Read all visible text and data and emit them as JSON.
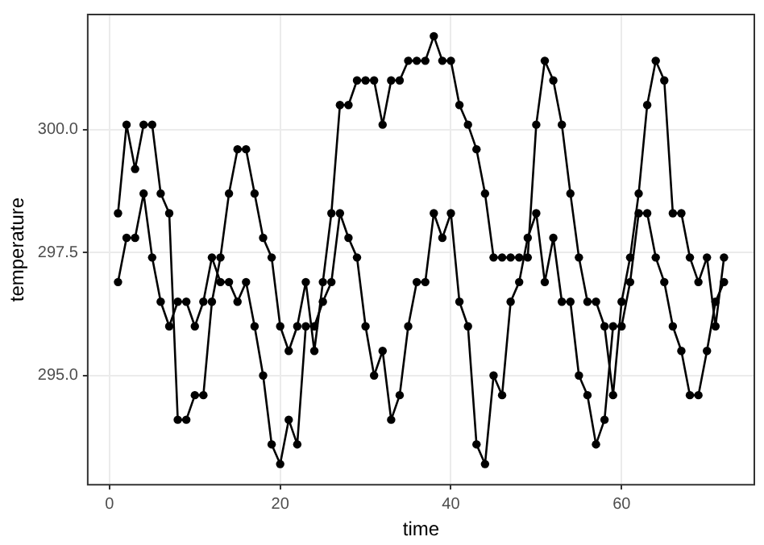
{
  "chart_data": {
    "type": "line",
    "xlabel": "time",
    "ylabel": "temperature",
    "x": [
      1,
      2,
      3,
      4,
      5,
      6,
      7,
      8,
      9,
      10,
      11,
      12,
      13,
      14,
      15,
      16,
      17,
      18,
      19,
      20,
      21,
      22,
      23,
      24,
      25,
      26,
      27,
      28,
      29,
      30,
      31,
      32,
      33,
      34,
      35,
      36,
      37,
      38,
      39,
      40,
      41,
      42,
      43,
      44,
      45,
      46,
      47,
      48,
      49,
      50,
      51,
      52,
      53,
      54,
      55,
      56,
      57,
      58,
      59,
      60,
      61,
      62,
      63,
      64,
      65,
      66,
      67,
      68,
      69,
      70,
      71,
      72
    ],
    "series": [
      {
        "color": "#000000",
        "values": [
          298.3,
          300.1,
          299.2,
          300.1,
          300.1,
          298.7,
          298.3,
          294.1,
          294.1,
          294.6,
          294.6,
          296.5,
          297.4,
          298.7,
          299.6,
          299.6,
          298.7,
          297.8,
          297.4,
          296.0,
          295.5,
          296.0,
          296.9,
          295.5,
          296.9,
          298.3,
          300.5,
          300.5,
          301.0,
          301.0,
          301.0,
          300.1,
          301.0,
          301.0,
          301.4,
          301.4,
          301.4,
          301.9,
          301.4,
          301.4,
          300.5,
          300.1,
          299.6,
          298.7,
          297.4,
          297.4,
          297.4,
          297.4,
          297.4,
          300.1,
          301.4,
          301.0,
          300.1,
          298.7,
          297.4,
          296.5,
          296.5,
          296.0,
          294.6,
          296.5,
          297.4,
          298.7,
          300.5,
          301.4,
          301.0,
          298.3,
          298.3,
          297.4,
          296.9,
          297.4,
          296.0,
          297.4
        ]
      },
      {
        "color": "#000000",
        "values": [
          296.9,
          297.8,
          297.8,
          298.7,
          297.4,
          296.5,
          296.0,
          296.5,
          296.5,
          296.0,
          296.5,
          297.4,
          296.9,
          296.9,
          296.5,
          296.9,
          296.0,
          295.0,
          293.6,
          293.2,
          294.1,
          293.6,
          296.0,
          296.0,
          296.5,
          296.9,
          298.3,
          297.8,
          297.4,
          296.0,
          295.0,
          295.5,
          294.1,
          294.6,
          296.0,
          296.9,
          296.9,
          298.3,
          297.8,
          298.3,
          296.5,
          296.0,
          293.6,
          293.2,
          295.0,
          294.6,
          296.5,
          296.9,
          297.8,
          298.3,
          296.9,
          297.8,
          296.5,
          296.5,
          295.0,
          294.6,
          293.6,
          294.1,
          296.0,
          296.0,
          296.9,
          298.3,
          298.3,
          297.4,
          296.9,
          296.0,
          295.5,
          294.6,
          294.6,
          295.5,
          296.5,
          296.9
        ]
      }
    ],
    "xlim": [
      -2.55,
      75.55
    ],
    "ylim": [
      292.78,
      302.34
    ],
    "xticks": [
      0,
      20,
      40,
      60
    ],
    "yticks": [
      {
        "value": 295,
        "label": "295.0"
      },
      {
        "value": 297.5,
        "label": "297.5"
      },
      {
        "value": 300,
        "label": "300.0"
      }
    ],
    "grid": true,
    "marker": "circle",
    "line_style": "solid",
    "legend": false
  }
}
